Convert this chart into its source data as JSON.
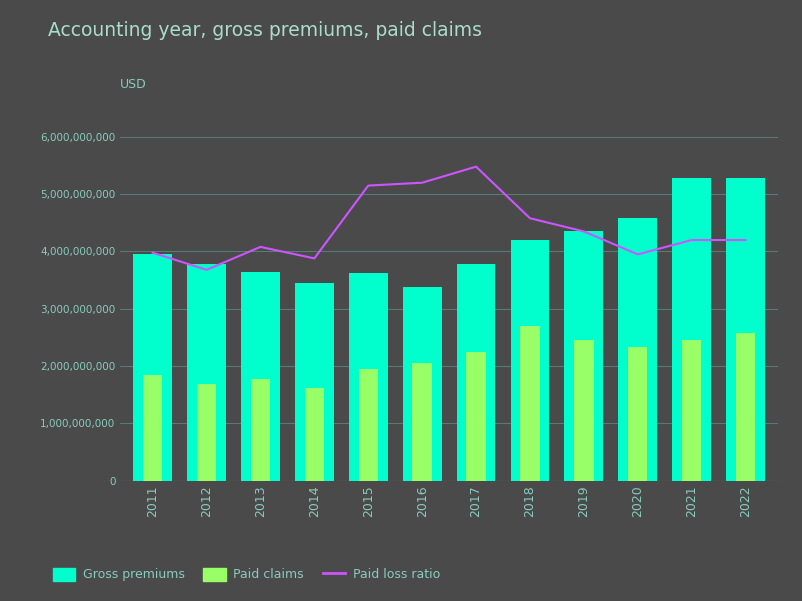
{
  "title": "Accounting year, gross premiums, paid claims",
  "ylabel": "USD",
  "background_color": "#4a4a4a",
  "years": [
    2011,
    2012,
    2013,
    2014,
    2015,
    2016,
    2017,
    2018,
    2019,
    2020,
    2021,
    2022
  ],
  "gross_premiums": [
    3950000000,
    3780000000,
    3650000000,
    3450000000,
    3620000000,
    3380000000,
    3780000000,
    4200000000,
    4350000000,
    4580000000,
    5280000000,
    5280000000
  ],
  "paid_claims": [
    1850000000,
    1680000000,
    1780000000,
    1620000000,
    1950000000,
    2050000000,
    2250000000,
    2700000000,
    2450000000,
    2330000000,
    2450000000,
    2580000000
  ],
  "paid_loss_ratio_values": [
    3980000000,
    3680000000,
    4080000000,
    3880000000,
    5150000000,
    5200000000,
    5480000000,
    4580000000,
    4350000000,
    3950000000,
    4200000000,
    4200000000
  ],
  "gross_premiums_color": "#00ffcc",
  "paid_claims_color": "#99ff66",
  "paid_loss_ratio_color": "#cc55ff",
  "grid_color": "#5a8a80",
  "text_color": "#88ccbb",
  "title_color": "#aaddcc",
  "ylim": [
    0,
    6500000000
  ],
  "yticks": [
    0,
    1000000000,
    2000000000,
    3000000000,
    4000000000,
    5000000000,
    6000000000
  ],
  "ytick_labels": [
    "0",
    "1,000,000,000",
    "2,000,000,000",
    "3,000,000,000",
    "4,000,000,000",
    "5,000,000,000",
    "6,000,000,000"
  ]
}
